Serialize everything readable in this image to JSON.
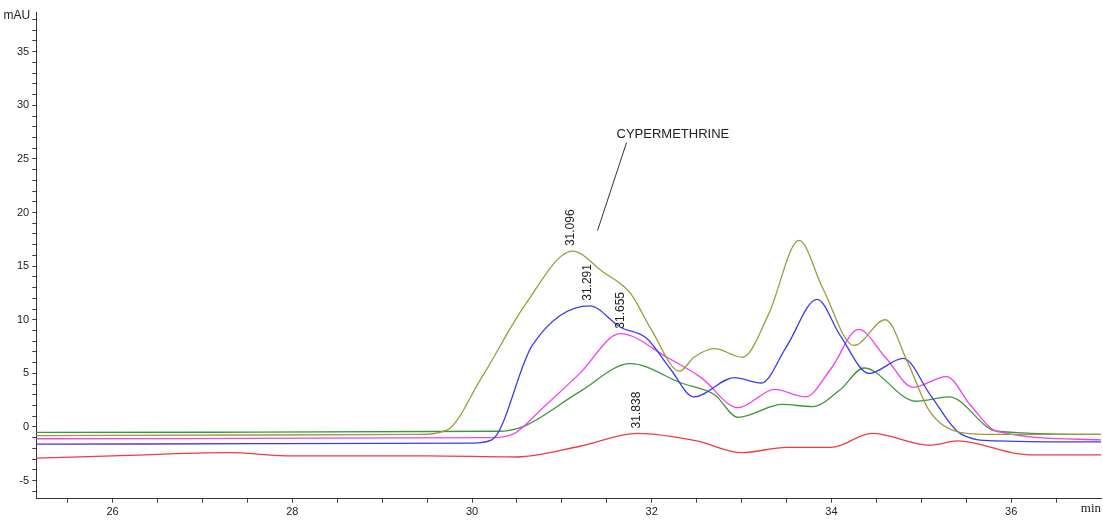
{
  "chart_data": {
    "type": "line",
    "xlabel": "min",
    "ylabel": "mAU",
    "xlim": [
      25.15,
      37
    ],
    "ylim": [
      -6.7,
      38.7
    ],
    "xticks": [
      {
        "value": 25.5,
        "label": null
      },
      26,
      {
        "value": 26.5,
        "label": null
      },
      {
        "value": 27,
        "label": null
      },
      {
        "value": 27.5,
        "label": null
      },
      28,
      {
        "value": 28.5,
        "label": null
      },
      {
        "value": 29,
        "label": null
      },
      {
        "value": 29.5,
        "label": null
      },
      30,
      {
        "value": 30.5,
        "label": null
      },
      {
        "value": 31,
        "label": null
      },
      {
        "value": 31.5,
        "label": null
      },
      32,
      {
        "value": 32.5,
        "label": null
      },
      {
        "value": 33,
        "label": null
      },
      {
        "value": 33.5,
        "label": null
      },
      34,
      {
        "value": 34.5,
        "label": null
      },
      {
        "value": 35,
        "label": null
      },
      {
        "value": 35.5,
        "label": null
      },
      36,
      {
        "value": 36.5,
        "label": null
      }
    ],
    "yticks": [
      {
        "value": -6,
        "label": null
      },
      -5,
      {
        "value": -4,
        "label": null
      },
      {
        "value": -3,
        "label": null
      },
      {
        "value": -2,
        "label": null
      },
      {
        "value": -1,
        "label": null
      },
      0,
      {
        "value": 1,
        "label": null
      },
      {
        "value": 2,
        "label": null
      },
      {
        "value": 3,
        "label": null
      },
      {
        "value": 4,
        "label": null
      },
      5,
      {
        "value": 6,
        "label": null
      },
      {
        "value": 7,
        "label": null
      },
      {
        "value": 8,
        "label": null
      },
      {
        "value": 9,
        "label": null
      },
      10,
      {
        "value": 11,
        "label": null
      },
      {
        "value": 12,
        "label": null
      },
      {
        "value": 13,
        "label": null
      },
      {
        "value": 14,
        "label": null
      },
      15,
      {
        "value": 16,
        "label": null
      },
      {
        "value": 17,
        "label": null
      },
      {
        "value": 18,
        "label": null
      },
      {
        "value": 19,
        "label": null
      },
      20,
      {
        "value": 21,
        "label": null
      },
      {
        "value": 22,
        "label": null
      },
      {
        "value": 23,
        "label": null
      },
      {
        "value": 24,
        "label": null
      },
      25,
      {
        "value": 26,
        "label": null
      },
      {
        "value": 27,
        "label": null
      },
      {
        "value": 28,
        "label": null
      },
      {
        "value": 29,
        "label": null
      },
      30,
      {
        "value": 31,
        "label": null
      },
      {
        "value": 32,
        "label": null
      },
      {
        "value": 33,
        "label": null
      },
      {
        "value": 34,
        "label": null
      },
      35,
      {
        "value": 36,
        "label": null
      },
      {
        "value": 37,
        "label": null
      },
      {
        "value": 38,
        "label": null
      }
    ],
    "grid": false,
    "legend": false,
    "line_style": "solid",
    "series": [
      {
        "color": "#9c9c3c",
        "x": [
          25.15,
          29.4,
          29.72,
          30.1,
          30.6,
          31.12,
          31.45,
          31.76,
          32.0,
          32.31,
          32.47,
          32.7,
          33.01,
          33.3,
          33.64,
          33.9,
          34.25,
          34.6,
          34.85,
          35.09,
          35.43,
          35.8,
          37
        ],
        "values": [
          -0.8,
          -0.7,
          -0.3,
          4.5,
          11.5,
          16.4,
          14.5,
          12.5,
          9.0,
          5.2,
          6.5,
          7.3,
          6.5,
          10.5,
          17.4,
          13.0,
          7.6,
          10.0,
          6.0,
          1.5,
          -0.5,
          -0.7,
          -0.7
        ]
      },
      {
        "color": "#3c3cf0",
        "x": [
          25.15,
          30.0,
          30.22,
          30.67,
          31.31,
          31.65,
          31.94,
          32.2,
          32.47,
          32.92,
          33.22,
          33.5,
          33.84,
          34.1,
          34.42,
          34.8,
          35.1,
          35.43,
          35.84,
          37
        ],
        "values": [
          -1.6,
          -1.5,
          -1.2,
          7.6,
          11.3,
          9.3,
          8.3,
          5.5,
          2.8,
          4.6,
          4.1,
          7.5,
          11.9,
          8.5,
          5.0,
          6.4,
          3.0,
          -0.6,
          -1.3,
          -1.4
        ]
      },
      {
        "color": "#f040f0",
        "x": [
          25.15,
          30.2,
          30.45,
          30.79,
          31.2,
          31.65,
          32.17,
          32.55,
          32.96,
          33.37,
          33.71,
          34.0,
          34.3,
          34.6,
          34.91,
          35.28,
          35.55,
          35.84,
          37
        ],
        "values": [
          -1.1,
          -1.0,
          -0.7,
          1.8,
          5.0,
          8.7,
          6.5,
          4.6,
          1.8,
          3.5,
          2.8,
          5.5,
          9.1,
          6.5,
          3.7,
          4.7,
          2.0,
          -0.4,
          -1.2
        ]
      },
      {
        "color": "#3c963c",
        "x": [
          25.15,
          30.3,
          30.56,
          31.2,
          31.76,
          32.33,
          32.7,
          32.96,
          33.45,
          33.79,
          34.1,
          34.36,
          34.94,
          35.31,
          35.84,
          37
        ],
        "values": [
          -0.5,
          -0.4,
          0.0,
          3.3,
          5.9,
          4.1,
          3.0,
          0.9,
          2.1,
          1.9,
          3.5,
          5.5,
          2.4,
          2.8,
          -0.4,
          -0.7
        ]
      },
      {
        "color": "#f03c3c",
        "x": [
          25.15,
          26.0,
          27.3,
          28.0,
          29.5,
          30.5,
          31.2,
          31.84,
          32.5,
          33.0,
          33.5,
          34.0,
          34.45,
          35.1,
          35.4,
          36.2,
          37
        ],
        "values": [
          -2.9,
          -2.7,
          -2.4,
          -2.7,
          -2.7,
          -2.8,
          -1.8,
          -0.6,
          -1.3,
          -2.4,
          -1.9,
          -1.9,
          -0.6,
          -1.7,
          -1.3,
          -2.6,
          -2.6
        ]
      }
    ],
    "annotations": [
      {
        "text": "31.096",
        "x": 31.096,
        "y": 16.4
      },
      {
        "text": "31.291",
        "x": 31.291,
        "y": 11.3
      },
      {
        "text": "31.655",
        "x": 31.655,
        "y": 8.7
      },
      {
        "text": "31.838",
        "x": 31.838,
        "y": -0.6
      },
      "CYPERMETHRINE"
    ]
  }
}
